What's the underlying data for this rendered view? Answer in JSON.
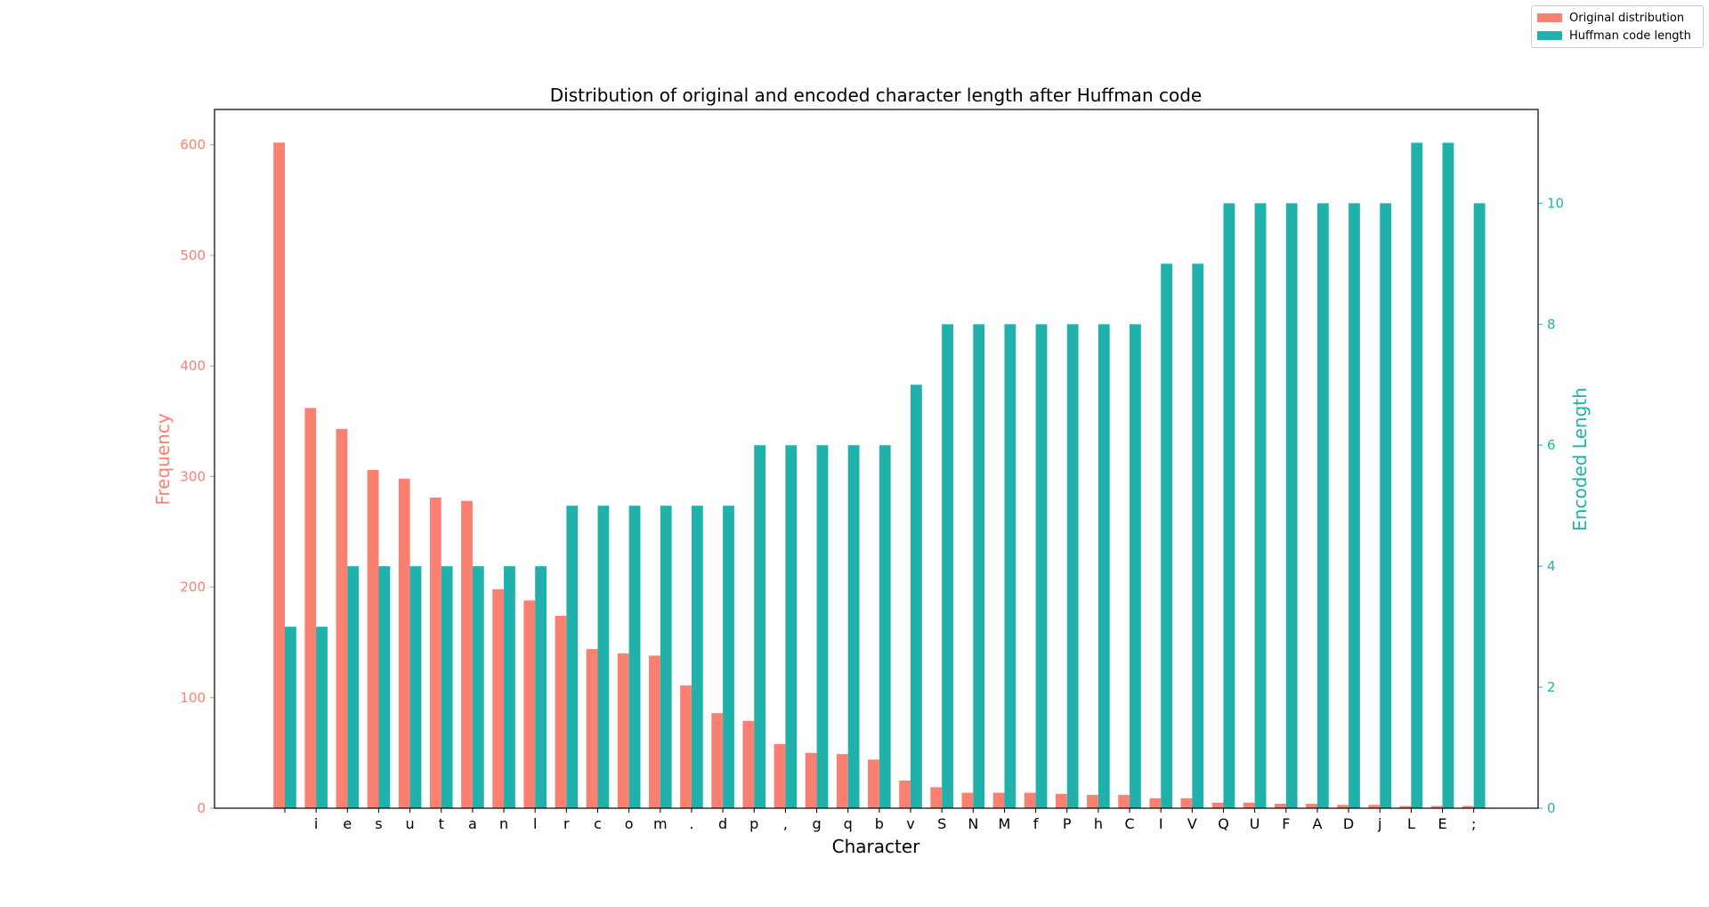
{
  "chart_data": {
    "type": "bar",
    "title": "Distribution of original and encoded character length after Huffman code",
    "xlabel": "Character",
    "ylabel": "Frequency",
    "y2label": "Encoded Length",
    "categories": [
      " ",
      "i",
      "e",
      "s",
      "u",
      "t",
      "a",
      "n",
      "l",
      "r",
      "c",
      "o",
      "m",
      ".",
      "d",
      "p",
      ",",
      "g",
      "q",
      "b",
      "v",
      "S",
      "N",
      "M",
      "f",
      "P",
      "h",
      "C",
      "I",
      "V",
      "Q",
      "U",
      "F",
      "A",
      "D",
      "j",
      "L",
      "E",
      ";"
    ],
    "ylim": [
      0,
      632
    ],
    "y2lim": [
      0,
      11.55
    ],
    "yticks": [
      0,
      100,
      200,
      300,
      400,
      500,
      600
    ],
    "y2ticks": [
      0,
      2,
      4,
      6,
      8,
      10
    ],
    "legend_position": "top-right",
    "colors": {
      "original": "#fa8072",
      "huffman": "#20b2aa"
    },
    "series": [
      {
        "name": "Original distribution",
        "axis": "left",
        "values": [
          602,
          362,
          343,
          306,
          298,
          281,
          278,
          198,
          188,
          174,
          144,
          140,
          138,
          111,
          86,
          79,
          58,
          50,
          49,
          44,
          25,
          19,
          14,
          14,
          14,
          13,
          12,
          12,
          9,
          9,
          5,
          5,
          4,
          4,
          3,
          3,
          2,
          2,
          2
        ]
      },
      {
        "name": "Huffman code length",
        "axis": "right",
        "values": [
          3,
          3,
          4,
          4,
          4,
          4,
          4,
          4,
          4,
          5,
          5,
          5,
          5,
          5,
          5,
          6,
          6,
          6,
          6,
          6,
          7,
          8,
          8,
          8,
          8,
          8,
          8,
          8,
          9,
          9,
          10,
          10,
          10,
          10,
          10,
          10,
          11,
          11,
          10
        ]
      }
    ]
  }
}
